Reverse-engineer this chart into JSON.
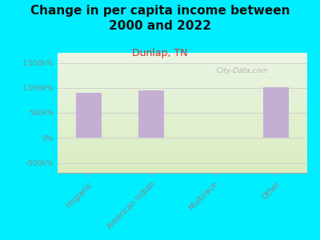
{
  "title": "Change in per capita income between\n2000 and 2022",
  "subtitle": "Dunlap, TN",
  "categories": [
    "Hispanic",
    "American Indian",
    "Multirace",
    "Other"
  ],
  "values": [
    900000,
    950000,
    0,
    1020000
  ],
  "bar_color": "#c4aed4",
  "background_outer": "#00eeff",
  "background_plot_top": "#eaf4e2",
  "background_plot_bottom": "#daecc0",
  "title_fontsize": 11,
  "subtitle_fontsize": 9,
  "subtitle_color": "#cc3333",
  "title_color": "#111111",
  "ylabel_ticks": [
    "-500k%",
    "0%",
    "500k%",
    "1,000k%",
    "1,500k%"
  ],
  "ytick_values": [
    -500000,
    0,
    500000,
    1000000,
    1500000
  ],
  "ylim": [
    -700000,
    1700000
  ],
  "watermark": "  City-Data.com"
}
